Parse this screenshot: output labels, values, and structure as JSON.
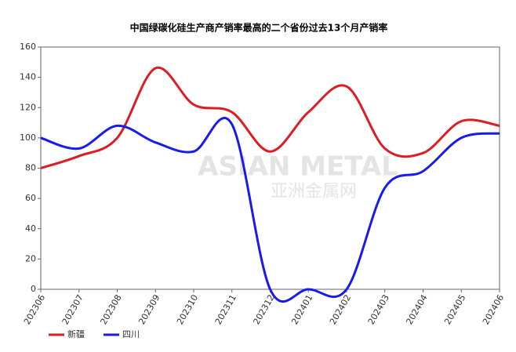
{
  "chart_data": {
    "type": "line",
    "title": "中国绿碳化硅生产商产销率最高的二个省份过去13个月产销率",
    "watermark": "ASIAN METAL",
    "watermark_cn": "亚洲金属网",
    "categories": [
      "202306",
      "202307",
      "202308",
      "202309",
      "202310",
      "202311",
      "202312",
      "202401",
      "202402",
      "202403",
      "202404",
      "202405",
      "202406"
    ],
    "series": [
      {
        "name": "新疆",
        "color": "#dd1c24",
        "values": [
          80,
          88,
          100,
          146,
          122,
          117,
          91,
          117,
          134,
          93,
          90,
          111,
          108
        ]
      },
      {
        "name": "四川",
        "color": "#1a1aee",
        "values": [
          100,
          93,
          108,
          97,
          91,
          109,
          0,
          0,
          0,
          67,
          78,
          100,
          103
        ]
      }
    ],
    "ylim": [
      0,
      160
    ],
    "yticks": [
      0,
      20,
      40,
      60,
      80,
      100,
      120,
      140,
      160
    ],
    "grid": false
  }
}
